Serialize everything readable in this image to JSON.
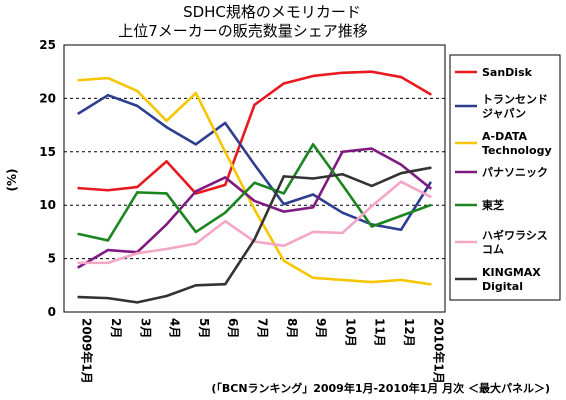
{
  "chart_data": {
    "type": "line",
    "title": "SDHC規格のメモリカード",
    "subtitle": "上位7メーカーの販売数量シェア推移",
    "ylabel": "(%)",
    "ylim": [
      0,
      25
    ],
    "yticks": [
      0,
      5,
      10,
      15,
      20,
      25
    ],
    "categories": [
      "2009年1月",
      "2月",
      "3月",
      "4月",
      "5月",
      "6月",
      "7月",
      "8月",
      "9月",
      "10月",
      "11月",
      "12月",
      "2010年1月"
    ],
    "grid": "horizontal dashed",
    "legend_position": "right",
    "source": "(「BCNランキング」2009年1月-2010年1月  月次  ＜最大パネル＞)",
    "series": [
      {
        "name": "SanDisk",
        "color": "#e8191f",
        "values": [
          11.6,
          11.4,
          11.7,
          14.1,
          11.1,
          11.9,
          19.4,
          21.4,
          22.1,
          22.4,
          22.5,
          22.0,
          20.4
        ]
      },
      {
        "name": "トランセンドジャパン",
        "legend_lines": [
          "トランセンド",
          "ジャパン"
        ],
        "color": "#2e3e8f",
        "values": [
          18.6,
          20.3,
          19.3,
          17.3,
          15.7,
          17.7,
          13.8,
          10.1,
          11.0,
          9.3,
          8.2,
          7.7,
          12.1
        ]
      },
      {
        "name": "A-DATA Technology",
        "legend_lines": [
          "A-DATA",
          "Technology"
        ],
        "color": "#f6c600",
        "values": [
          21.7,
          21.9,
          20.7,
          17.9,
          20.5,
          15.0,
          9.6,
          4.8,
          3.2,
          3.0,
          2.8,
          3.0,
          2.6
        ]
      },
      {
        "name": "パナソニック",
        "color": "#7f1b80",
        "values": [
          4.2,
          5.8,
          5.6,
          8.2,
          11.3,
          12.6,
          10.4,
          9.4,
          9.8,
          15.0,
          15.3,
          13.8,
          11.6
        ]
      },
      {
        "name": "東芝",
        "color": "#1b8520",
        "values": [
          7.3,
          6.7,
          11.2,
          11.1,
          7.5,
          9.3,
          12.1,
          11.1,
          15.7,
          11.9,
          8.0,
          9.0,
          10.0
        ]
      },
      {
        "name": "ハギワラシスコム",
        "legend_lines": [
          "ハギワラシス",
          "コム"
        ],
        "color": "#f4a6c6",
        "values": [
          4.6,
          4.6,
          5.5,
          5.9,
          6.4,
          8.5,
          6.6,
          6.2,
          7.5,
          7.4,
          9.9,
          12.2,
          10.8
        ]
      },
      {
        "name": "KINGMAX Digital",
        "legend_lines": [
          "KINGMAX",
          "Digital"
        ],
        "color": "#333333",
        "values": [
          1.4,
          1.3,
          0.9,
          1.5,
          2.5,
          2.6,
          6.8,
          12.7,
          12.5,
          12.9,
          11.8,
          13.0,
          13.5
        ]
      }
    ]
  }
}
